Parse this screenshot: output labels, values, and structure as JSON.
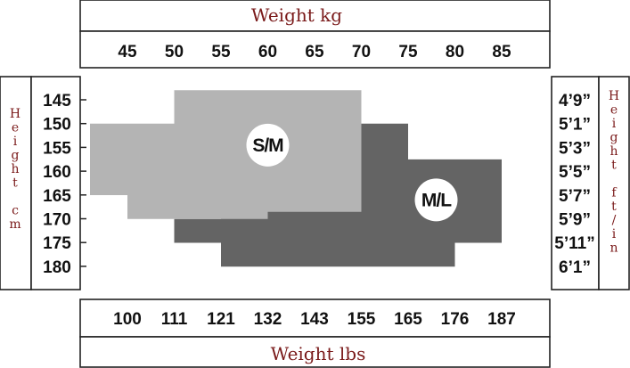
{
  "chart_data": {
    "type": "area",
    "title_top": "Weight kg",
    "title_bottom": "Weight lbs",
    "title_left": "Height cm",
    "title_right": "Height ft/in",
    "kg_ticks": [
      "45",
      "50",
      "55",
      "60",
      "65",
      "70",
      "75",
      "80",
      "85"
    ],
    "lbs_ticks": [
      "100",
      "111",
      "121",
      "132",
      "143",
      "155",
      "165",
      "176",
      "187"
    ],
    "cm_ticks": [
      "145",
      "150",
      "155",
      "160",
      "165",
      "170",
      "175",
      "180"
    ],
    "ftin_ticks": [
      "4’9”",
      "5’1”",
      "5’3”",
      "5’5”",
      "5’7”",
      "5’9”",
      "5’11”",
      "6’1”"
    ],
    "regions": [
      {
        "name": "M/L",
        "color": "#646464",
        "polygon_kg_cm": [
          [
            50,
            175
          ],
          [
            50,
            170
          ],
          [
            55,
            170
          ],
          [
            55,
            150
          ],
          [
            75,
            150
          ],
          [
            75,
            157.5
          ],
          [
            85,
            157.5
          ],
          [
            85,
            175
          ],
          [
            80,
            175
          ],
          [
            80,
            180
          ],
          [
            55,
            180
          ],
          [
            55,
            175
          ]
        ]
      },
      {
        "name": "S/M",
        "color": "#b4b4b4",
        "polygon_kg_cm": [
          [
            50,
            143
          ],
          [
            70,
            143
          ],
          [
            70,
            168.5
          ],
          [
            60,
            168.5
          ],
          [
            60,
            170
          ],
          [
            45,
            170
          ],
          [
            45,
            165
          ],
          [
            41,
            165
          ],
          [
            41,
            150
          ],
          [
            50,
            150
          ]
        ]
      }
    ],
    "region_labels": [
      {
        "text": "S/M",
        "kg": 60,
        "cm": 154.5
      },
      {
        "text": "M/L",
        "kg": 78,
        "cm": 166
      }
    ]
  }
}
